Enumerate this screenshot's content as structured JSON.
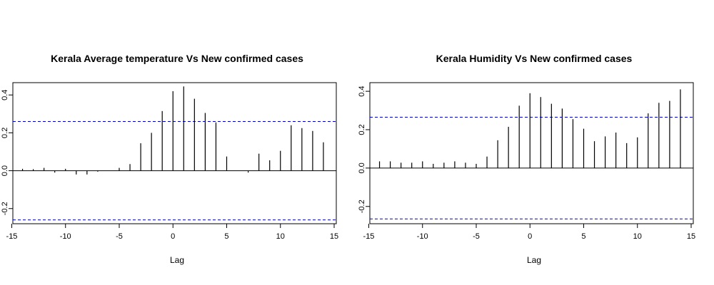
{
  "chart_data": [
    {
      "type": "bar",
      "title": "Kerala Average temperature Vs New confirmed cases",
      "xlabel": "Lag",
      "ylabel": "",
      "x": [
        -14,
        -13,
        -12,
        -11,
        -10,
        -9,
        -8,
        -7,
        -6,
        -5,
        -4,
        -3,
        -2,
        -1,
        0,
        1,
        2,
        3,
        4,
        5,
        6,
        7,
        8,
        9,
        10,
        11,
        12,
        13,
        14
      ],
      "values": [
        0.01,
        0.008,
        0.015,
        -0.01,
        0.01,
        -0.02,
        -0.02,
        -0.005,
        0.0,
        0.015,
        0.035,
        0.145,
        0.2,
        0.315,
        0.42,
        0.445,
        0.38,
        0.305,
        0.255,
        0.075,
        0.0,
        -0.01,
        0.09,
        0.055,
        0.105,
        0.24,
        0.225,
        0.21,
        0.15
      ],
      "xlim": [
        -14.9,
        15.2
      ],
      "ylim": [
        -0.28,
        0.465
      ],
      "xticks": [
        -15,
        -10,
        -5,
        0,
        5,
        10,
        15
      ],
      "yticks": [
        -0.2,
        0.0,
        0.2,
        0.4
      ],
      "ytick_labels": [
        "-0.2",
        "0.0",
        "0.2",
        "0.4"
      ],
      "conf_bound": 0.26,
      "bar_color": "#000000",
      "bound_color": "#0000cc",
      "grid": false
    },
    {
      "type": "bar",
      "title": "Kerala Humidity Vs New confirmed cases",
      "xlabel": "Lag",
      "ylabel": "",
      "x": [
        -14,
        -13,
        -12,
        -11,
        -10,
        -9,
        -8,
        -7,
        -6,
        -5,
        -4,
        -3,
        -2,
        -1,
        0,
        1,
        2,
        3,
        4,
        5,
        6,
        7,
        8,
        9,
        10,
        11,
        12,
        13,
        14
      ],
      "values": [
        0.035,
        0.035,
        0.028,
        0.028,
        0.035,
        0.022,
        0.028,
        0.035,
        0.028,
        0.022,
        0.06,
        0.145,
        0.215,
        0.325,
        0.39,
        0.37,
        0.335,
        0.31,
        0.255,
        0.205,
        0.14,
        0.165,
        0.185,
        0.13,
        0.16,
        0.285,
        0.34,
        0.35,
        0.41
      ],
      "xlim": [
        -14.9,
        15.2
      ],
      "ylim": [
        -0.29,
        0.445
      ],
      "xticks": [
        -15,
        -10,
        -5,
        0,
        5,
        10,
        15
      ],
      "yticks": [
        -0.2,
        0.0,
        0.2,
        0.4
      ],
      "ytick_labels": [
        "-0.2",
        "0.0",
        "0.2",
        "0.4"
      ],
      "conf_bound": 0.265,
      "bar_color": "#000000",
      "bound_color": "#0000cc",
      "grid": false
    }
  ]
}
